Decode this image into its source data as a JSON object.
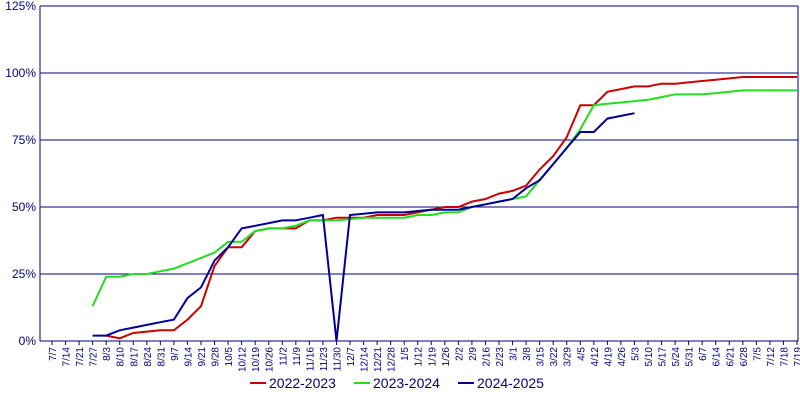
{
  "chart_data": {
    "type": "line",
    "categories": [
      "7/7",
      "7/14",
      "7/21",
      "7/27",
      "8/3",
      "8/10",
      "8/17",
      "8/24",
      "8/31",
      "9/7",
      "9/14",
      "9/21",
      "9/28",
      "10/5",
      "10/12",
      "10/19",
      "10/26",
      "11/2",
      "11/9",
      "11/16",
      "11/23",
      "11/30",
      "12/7",
      "12/14",
      "12/21",
      "12/28",
      "1/5",
      "1/12",
      "1/19",
      "1/26",
      "2/2",
      "2/9",
      "2/16",
      "2/23",
      "3/1",
      "3/8",
      "3/15",
      "3/22",
      "3/29",
      "4/5",
      "4/12",
      "4/19",
      "4/26",
      "5/3",
      "5/10",
      "5/17",
      "5/24",
      "5/31",
      "6/7",
      "6/14",
      "6/21",
      "6/28",
      "7/5",
      "7/12",
      "7/18",
      "7/19"
    ],
    "series": [
      {
        "name": "2022-2023",
        "color": "#cc0000",
        "values": [
          null,
          null,
          null,
          null,
          2,
          1,
          3,
          3.5,
          4,
          4,
          8,
          13,
          28,
          35,
          35,
          41,
          42,
          42,
          42,
          45,
          45,
          46,
          46,
          46,
          47,
          47,
          47,
          48,
          49,
          50,
          50,
          52,
          53,
          55,
          56,
          58,
          64,
          69,
          76,
          88,
          88,
          93,
          94,
          95,
          95,
          96,
          96,
          96.5,
          97,
          97.5,
          98,
          98.5,
          98.5,
          98.5,
          98.5,
          98.5
        ]
      },
      {
        "name": "2023-2024",
        "color": "#22dd22",
        "values": [
          null,
          null,
          null,
          13,
          24,
          24,
          25,
          25,
          26,
          27,
          29,
          31,
          33,
          37,
          37,
          41,
          42,
          42,
          43,
          45,
          45,
          45,
          45.5,
          46,
          46,
          46,
          46,
          47,
          47,
          48,
          48,
          50,
          51,
          52,
          53,
          54,
          60,
          66,
          72,
          79,
          88,
          88.5,
          89,
          89.5,
          90,
          91,
          92,
          92,
          92,
          92.5,
          93,
          93.5,
          93.5,
          93.5,
          93.5,
          93.5
        ]
      },
      {
        "name": "2024-2025",
        "color": "#000099",
        "values": [
          null,
          null,
          null,
          2,
          2,
          4,
          5,
          6,
          7,
          8,
          16,
          20,
          30,
          35,
          42,
          43,
          44,
          45,
          45,
          46,
          47,
          0,
          47,
          47.5,
          48,
          48,
          48,
          48.5,
          49,
          49,
          49,
          50,
          51,
          52,
          53,
          57,
          60,
          66,
          72,
          78,
          78,
          83,
          84,
          85,
          null,
          null,
          null,
          null,
          null,
          null,
          null,
          null,
          null,
          null,
          null,
          null
        ]
      }
    ],
    "ylim": [
      0,
      125
    ],
    "yticks": [
      {
        "value": 0,
        "label": "0%"
      },
      {
        "value": 25,
        "label": "25%"
      },
      {
        "value": 50,
        "label": "50%"
      },
      {
        "value": 75,
        "label": "75%"
      },
      {
        "value": 100,
        "label": "100%"
      },
      {
        "value": 125,
        "label": "125%"
      }
    ],
    "grid": true
  }
}
